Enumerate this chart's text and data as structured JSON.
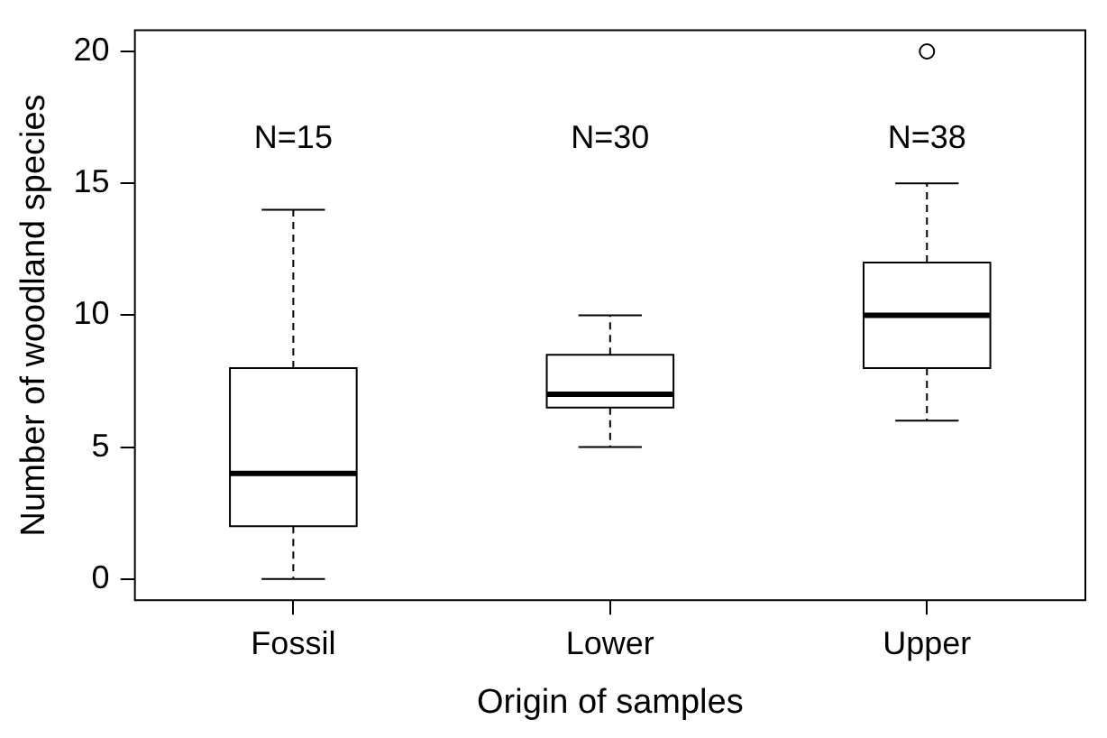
{
  "chart_data": {
    "type": "box",
    "xlabel": "Origin of samples",
    "ylabel": "Number of woodland species",
    "categories": [
      "Fossil",
      "Lower",
      "Upper"
    ],
    "boxes": [
      {
        "low": 0,
        "q1": 2,
        "median": 4,
        "q3": 8,
        "high": 14
      },
      {
        "low": 5,
        "q1": 6.5,
        "median": 7,
        "q3": 8.5,
        "high": 10
      },
      {
        "low": 6,
        "q1": 8,
        "median": 10,
        "q3": 12,
        "high": 15,
        "outliers": [
          20
        ]
      }
    ],
    "color": "#000000",
    "ylim": [
      -0.8,
      20.8
    ],
    "yticks": [
      0,
      5,
      10,
      15,
      20
    ],
    "grid": false,
    "legend": false,
    "annotations": [
      "N=15",
      "N=30",
      "N=38"
    ]
  }
}
